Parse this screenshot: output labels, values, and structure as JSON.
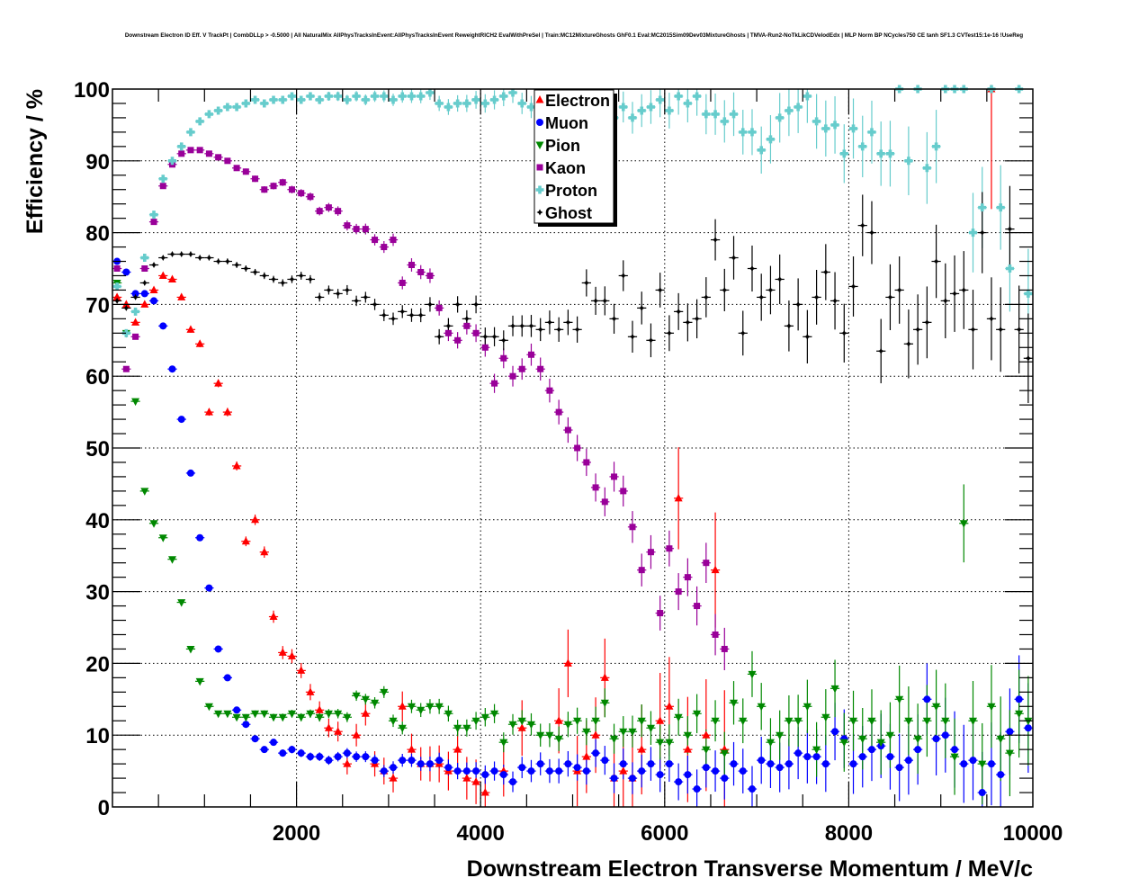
{
  "chart_data": {
    "type": "scatter",
    "title": "Downstream Electron ID Eff. V TrackPt | CombDLLp > -0.5000 | All NaturalMix AllPhysTracksInEvent:AllPhysTracksInEvent ReweightRICH2 EvalWithPreSel | Train:MC12MixtureGhosts GhF0.1 Eval:MC2015Sim09Dev03MixtureGhosts | TMVA-Run2-NoTkLikCDVelodEdx | MLP Norm BP NCycles750 CE tanh SF1.3 CVTest15:1e-16 !UseReg",
    "xlabel": "Downstream Electron Transverse Momentum / MeV/c",
    "ylabel": "Efficiency / %",
    "xlim": [
      0,
      10000
    ],
    "ylim": [
      0,
      100
    ],
    "xticks": [
      2000,
      4000,
      6000,
      8000,
      10000
    ],
    "yticks": [
      0,
      10,
      20,
      30,
      40,
      50,
      60,
      70,
      80,
      90,
      100
    ],
    "grid": true,
    "legend_position": "top-center",
    "bin_width": 100,
    "x_start": 50,
    "series": [
      {
        "name": "Electron",
        "color": "#ff0000",
        "marker": "triangle-up",
        "values": [
          71,
          70,
          67.5,
          70,
          72,
          74,
          73.5,
          71,
          66.5,
          64.5,
          55,
          59,
          55,
          47.5,
          37,
          40,
          35.5,
          26.5,
          21.5,
          21,
          19,
          16,
          13.5,
          11,
          10.5,
          6,
          10,
          13,
          6,
          5,
          4,
          14,
          8,
          6,
          6,
          6,
          5,
          8,
          4,
          3.5,
          2,
          null,
          5,
          null,
          11,
          null,
          null,
          null,
          12,
          20,
          5,
          7,
          10,
          18,
          4,
          5,
          4,
          8,
          null,
          12,
          14,
          43,
          8,
          null,
          10,
          33,
          8,
          null,
          null,
          null,
          null,
          null,
          null,
          null,
          null,
          null,
          null,
          null,
          null,
          null,
          null,
          null,
          null,
          null,
          null,
          null,
          null,
          null,
          null,
          null,
          null,
          null,
          null,
          null,
          null,
          100,
          null,
          null,
          null,
          null
        ]
      },
      {
        "name": "Muon",
        "color": "#0000ff",
        "marker": "circle",
        "values": [
          76,
          74.5,
          71.5,
          71.5,
          70.5,
          67,
          61,
          54,
          46.5,
          37.5,
          30.5,
          22,
          18,
          13.5,
          11.5,
          9.5,
          8,
          9,
          7.5,
          8,
          7.5,
          7,
          7,
          6.5,
          7,
          7.5,
          7,
          7,
          6.5,
          5,
          5.5,
          6.5,
          6.5,
          6,
          6,
          6.5,
          5.5,
          5,
          5,
          5,
          4.5,
          5,
          4.5,
          3.5,
          5.5,
          5,
          6,
          5,
          5,
          6,
          5.5,
          5,
          7.5,
          6.5,
          4,
          6,
          4,
          5,
          6,
          4.5,
          6,
          3.5,
          4.5,
          2.5,
          5.5,
          5,
          4,
          6,
          5,
          2.5,
          6.5,
          6,
          5.5,
          6,
          7.5,
          7,
          7,
          6,
          10.5,
          9.5,
          6,
          7,
          8,
          8.5,
          7,
          5.5,
          6.5,
          8,
          15,
          9.5,
          10,
          8,
          6,
          6.5,
          2,
          6,
          4.5,
          10.5,
          15,
          11
        ]
      },
      {
        "name": "Pion",
        "color": "#008800",
        "marker": "triangle-down",
        "values": [
          73,
          66,
          56.5,
          44,
          39.5,
          37.5,
          34.5,
          28.5,
          22,
          17.5,
          14,
          13,
          13,
          12.5,
          12.5,
          13,
          13,
          12.5,
          12.5,
          13,
          12.5,
          13,
          12.5,
          13,
          13,
          12.5,
          15.5,
          15,
          14.5,
          16,
          12,
          11,
          14,
          13.5,
          14,
          14,
          13,
          11,
          11,
          12,
          12.5,
          13,
          9,
          11.5,
          12,
          11.5,
          10,
          10,
          9.5,
          11.5,
          12,
          10.5,
          12,
          14.5,
          9.5,
          10.5,
          10.5,
          12,
          11,
          9,
          9,
          12.5,
          10,
          13,
          8,
          12,
          7.5,
          14.5,
          12,
          18.5,
          14,
          9,
          10,
          12,
          12,
          14,
          8,
          12.5,
          16.5,
          9,
          12,
          9.5,
          12,
          9,
          10,
          15,
          12,
          9.5,
          12,
          14,
          12,
          7,
          39.5,
          12,
          6,
          14,
          9.5,
          7.5,
          13,
          12
        ]
      },
      {
        "name": "Kaon",
        "color": "#990099",
        "marker": "square",
        "values": [
          75,
          61,
          65.5,
          75,
          81.5,
          86.5,
          89.5,
          91,
          91.5,
          91.5,
          91,
          90.5,
          90,
          89,
          88.5,
          87.5,
          86,
          86.5,
          87,
          86,
          85.5,
          85,
          83,
          83.5,
          83,
          81,
          80.5,
          80.5,
          79,
          78,
          79,
          73,
          75.5,
          74.5,
          74,
          69.5,
          66,
          65,
          67,
          66,
          64,
          59,
          62.5,
          60,
          61,
          63,
          61,
          58,
          55,
          52.5,
          50,
          48,
          44.5,
          42.5,
          46,
          44,
          39,
          33,
          35.5,
          27,
          36,
          30,
          32,
          28,
          34,
          24,
          22,
          null,
          null,
          null,
          null,
          null,
          null,
          null,
          null,
          null,
          null,
          null,
          null,
          null,
          null,
          null,
          null,
          null,
          null,
          null,
          null,
          null,
          null,
          null,
          null,
          null,
          null,
          null,
          null,
          null,
          null,
          null,
          null,
          null
        ]
      },
      {
        "name": "Proton",
        "color": "#66cccc",
        "marker": "cross",
        "values": [
          72.5,
          66,
          69,
          76.5,
          82.5,
          87.5,
          90,
          92,
          94,
          95.5,
          96.5,
          97,
          97.5,
          97.5,
          98,
          98.5,
          98,
          98.5,
          98.5,
          99,
          98.5,
          99,
          98.5,
          99,
          99,
          98.5,
          99,
          98.5,
          99,
          99,
          98.5,
          99,
          99,
          99,
          99.5,
          98,
          97.5,
          98,
          98,
          98.5,
          98,
          98.5,
          99,
          99.5,
          98,
          97.5,
          98.5,
          98,
          97,
          98,
          97.5,
          98.5,
          98,
          99,
          96,
          97.5,
          96,
          97,
          97.5,
          98.5,
          97,
          99,
          98,
          99,
          96.5,
          96.5,
          95.5,
          96.5,
          94,
          94,
          91.5,
          93,
          96,
          97,
          97.5,
          99,
          95.5,
          94.5,
          95,
          91,
          94.5,
          92,
          94,
          91,
          91,
          100,
          90,
          100,
          89,
          92,
          100,
          100,
          100,
          80,
          83.5,
          100,
          83.5,
          75,
          100,
          71.5
        ]
      },
      {
        "name": "Ghost",
        "color": "#000000",
        "marker": "star",
        "values": [
          70.5,
          69.5,
          71,
          73,
          75.5,
          76.5,
          77,
          77,
          77,
          76.5,
          76.5,
          76,
          76,
          75.5,
          75,
          74.5,
          74,
          73.5,
          73,
          73.5,
          74,
          73.5,
          71,
          72,
          71.5,
          72,
          70.5,
          71,
          70,
          68.5,
          68,
          69,
          68.5,
          68.5,
          70,
          65.5,
          67,
          70,
          68,
          70,
          65.5,
          65.5,
          65,
          67,
          67,
          67,
          66.5,
          67.5,
          66.5,
          67.5,
          66.5,
          73,
          70.5,
          70.5,
          68,
          74,
          65.5,
          69.5,
          65,
          72,
          66,
          69,
          67.5,
          68,
          71,
          79,
          72,
          76.5,
          66,
          75,
          71,
          72,
          73.5,
          67,
          70,
          65.5,
          71,
          74.5,
          70.5,
          66,
          72.5,
          81,
          80,
          63.5,
          71,
          72,
          64.5,
          66.5,
          67.5,
          76,
          70.5,
          71.5,
          72,
          66.5,
          80,
          68,
          66.5,
          80.5,
          66.5,
          62.5
        ]
      }
    ]
  }
}
